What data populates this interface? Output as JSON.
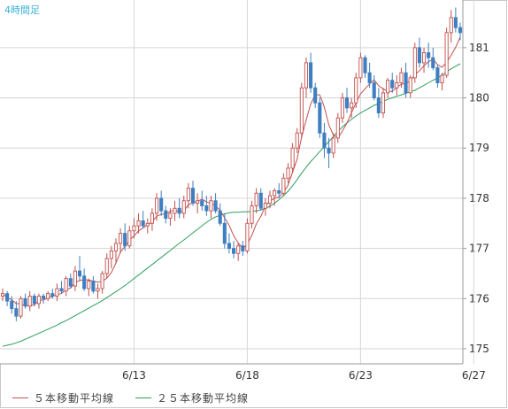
{
  "chart_title": "4時間足",
  "legend": [
    {
      "label": "５本移動平均線",
      "color": "#c0504d"
    },
    {
      "label": "２５本移動平均線",
      "color": "#2e9e5f"
    }
  ],
  "chart_data": {
    "type": "candlestick",
    "title": "4時間足",
    "ylim": [
      174.7,
      181.95
    ],
    "yticks": [
      175,
      176,
      177,
      178,
      179,
      180,
      181
    ],
    "xticks": [
      {
        "label": "6/13",
        "index": 29
      },
      {
        "label": "6/18",
        "index": 54
      },
      {
        "label": "6/23",
        "index": 79
      },
      {
        "label": "6/27",
        "index": 104
      }
    ],
    "grid": true,
    "legend_position": "bottom",
    "colors": {
      "up": "#c0504d",
      "down": "#3f7fc1",
      "ma5": "#c0504d",
      "ma25": "#2e9e5f"
    },
    "ohlc": [
      [
        176.05,
        176.2,
        175.95,
        176.1
      ],
      [
        176.1,
        176.15,
        175.85,
        175.95
      ],
      [
        175.95,
        176.05,
        175.7,
        175.8
      ],
      [
        175.8,
        175.95,
        175.55,
        175.65
      ],
      [
        175.65,
        176.05,
        175.6,
        176.0
      ],
      [
        176.0,
        176.1,
        175.8,
        175.85
      ],
      [
        175.85,
        176.15,
        175.75,
        176.05
      ],
      [
        176.05,
        176.1,
        175.85,
        175.9
      ],
      [
        175.9,
        176.1,
        175.8,
        176.05
      ],
      [
        176.05,
        176.1,
        175.9,
        176.0
      ],
      [
        176.0,
        176.15,
        175.95,
        176.1
      ],
      [
        176.1,
        176.2,
        176.0,
        176.05
      ],
      [
        176.05,
        176.3,
        175.95,
        176.2
      ],
      [
        176.2,
        176.35,
        176.1,
        176.15
      ],
      [
        176.15,
        176.45,
        176.05,
        176.4
      ],
      [
        176.4,
        176.5,
        176.2,
        176.25
      ],
      [
        176.25,
        176.65,
        176.15,
        176.55
      ],
      [
        176.55,
        176.85,
        176.35,
        176.45
      ],
      [
        176.45,
        176.6,
        176.15,
        176.2
      ],
      [
        176.2,
        176.4,
        176.05,
        176.35
      ],
      [
        176.35,
        176.45,
        176.1,
        176.15
      ],
      [
        176.15,
        176.3,
        176.0,
        176.2
      ],
      [
        176.2,
        176.55,
        176.1,
        176.5
      ],
      [
        176.5,
        176.9,
        176.4,
        176.8
      ],
      [
        176.8,
        177.05,
        176.6,
        176.95
      ],
      [
        176.95,
        177.2,
        176.7,
        177.1
      ],
      [
        177.1,
        177.4,
        176.9,
        177.3
      ],
      [
        177.3,
        177.5,
        176.95,
        177.05
      ],
      [
        177.05,
        177.45,
        177.0,
        177.35
      ],
      [
        177.35,
        177.6,
        177.2,
        177.45
      ],
      [
        177.45,
        177.7,
        177.3,
        177.55
      ],
      [
        177.55,
        177.75,
        177.4,
        177.45
      ],
      [
        177.45,
        177.6,
        177.3,
        177.5
      ],
      [
        177.5,
        177.8,
        177.35,
        177.7
      ],
      [
        177.7,
        178.1,
        177.55,
        178.0
      ],
      [
        178.0,
        178.15,
        177.65,
        177.75
      ],
      [
        177.75,
        177.85,
        177.5,
        177.6
      ],
      [
        177.6,
        177.8,
        177.45,
        177.7
      ],
      [
        177.7,
        177.95,
        177.55,
        177.8
      ],
      [
        177.8,
        178.0,
        177.6,
        177.7
      ],
      [
        177.7,
        178.05,
        177.6,
        177.95
      ],
      [
        177.95,
        178.3,
        177.8,
        178.2
      ],
      [
        178.2,
        178.35,
        177.85,
        177.9
      ],
      [
        177.9,
        178.1,
        177.7,
        177.95
      ],
      [
        177.95,
        178.15,
        177.75,
        177.85
      ],
      [
        177.85,
        178.05,
        177.65,
        177.75
      ],
      [
        177.75,
        178.05,
        177.6,
        177.95
      ],
      [
        177.95,
        178.1,
        177.7,
        177.75
      ],
      [
        177.75,
        177.9,
        177.45,
        177.5
      ],
      [
        177.5,
        177.7,
        177.0,
        177.1
      ],
      [
        177.1,
        177.3,
        176.9,
        177.0
      ],
      [
        177.0,
        177.15,
        176.8,
        176.9
      ],
      [
        176.9,
        177.1,
        176.75,
        177.05
      ],
      [
        177.05,
        177.15,
        176.85,
        176.95
      ],
      [
        176.95,
        177.6,
        176.9,
        177.5
      ],
      [
        177.5,
        177.95,
        177.4,
        177.85
      ],
      [
        177.85,
        178.2,
        177.7,
        178.1
      ],
      [
        178.1,
        178.2,
        177.75,
        177.8
      ],
      [
        177.8,
        178.0,
        177.65,
        177.9
      ],
      [
        177.9,
        178.15,
        177.8,
        178.05
      ],
      [
        178.05,
        178.2,
        177.85,
        178.15
      ],
      [
        178.15,
        178.3,
        178.0,
        178.1
      ],
      [
        178.1,
        178.5,
        178.05,
        178.4
      ],
      [
        178.4,
        178.7,
        178.3,
        178.6
      ],
      [
        178.6,
        179.1,
        178.5,
        179.0
      ],
      [
        179.0,
        179.4,
        178.9,
        179.3
      ],
      [
        179.3,
        180.3,
        179.2,
        180.2
      ],
      [
        180.2,
        180.8,
        180.0,
        180.7
      ],
      [
        180.7,
        180.9,
        180.1,
        180.2
      ],
      [
        180.2,
        180.3,
        179.8,
        179.9
      ],
      [
        179.9,
        180.0,
        179.2,
        179.3
      ],
      [
        179.3,
        179.5,
        178.8,
        179.0
      ],
      [
        179.0,
        179.2,
        178.6,
        178.9
      ],
      [
        178.9,
        179.3,
        178.8,
        179.2
      ],
      [
        179.2,
        179.7,
        179.1,
        179.6
      ],
      [
        179.6,
        180.1,
        179.5,
        180.0
      ],
      [
        180.0,
        180.2,
        179.7,
        179.8
      ],
      [
        179.8,
        180.0,
        179.6,
        179.9
      ],
      [
        179.9,
        180.5,
        179.8,
        180.4
      ],
      [
        180.4,
        180.9,
        180.3,
        180.8
      ],
      [
        180.8,
        180.85,
        180.4,
        180.5
      ],
      [
        180.5,
        180.7,
        180.2,
        180.3
      ],
      [
        180.3,
        180.45,
        179.95,
        180.0
      ],
      [
        180.0,
        180.2,
        179.6,
        179.7
      ],
      [
        179.7,
        180.2,
        179.6,
        180.1
      ],
      [
        180.1,
        180.4,
        180.0,
        180.35
      ],
      [
        180.35,
        180.5,
        180.1,
        180.2
      ],
      [
        180.2,
        180.45,
        180.05,
        180.3
      ],
      [
        180.3,
        180.6,
        180.2,
        180.5
      ],
      [
        180.5,
        180.7,
        180.0,
        180.1
      ],
      [
        180.1,
        180.45,
        180.0,
        180.4
      ],
      [
        180.4,
        181.1,
        180.3,
        181.0
      ],
      [
        181.0,
        181.2,
        180.6,
        180.7
      ],
      [
        180.7,
        181.0,
        180.5,
        180.9
      ],
      [
        180.9,
        181.1,
        180.6,
        180.8
      ],
      [
        180.8,
        181.0,
        180.55,
        180.6
      ],
      [
        180.6,
        180.65,
        180.2,
        180.3
      ],
      [
        180.3,
        180.5,
        180.15,
        180.45
      ],
      [
        180.45,
        181.4,
        180.4,
        181.3
      ],
      [
        181.3,
        181.75,
        181.1,
        181.6
      ],
      [
        181.6,
        181.8,
        181.3,
        181.4
      ],
      [
        181.4,
        181.5,
        181.15,
        181.3
      ]
    ],
    "ma5": [
      176.1,
      176.02,
      175.98,
      175.9,
      175.9,
      175.85,
      175.87,
      175.87,
      175.97,
      175.97,
      176.02,
      176.04,
      176.08,
      176.1,
      176.18,
      176.21,
      176.32,
      176.36,
      176.38,
      176.37,
      176.35,
      176.33,
      176.34,
      176.41,
      176.52,
      176.71,
      176.93,
      177.04,
      177.16,
      177.25,
      177.35,
      177.41,
      177.47,
      177.53,
      177.64,
      177.68,
      177.69,
      177.74,
      177.77,
      177.72,
      177.75,
      177.87,
      177.91,
      177.94,
      177.98,
      177.93,
      177.89,
      177.85,
      177.76,
      177.61,
      177.46,
      177.25,
      177.11,
      177.0,
      177.08,
      177.26,
      177.49,
      177.64,
      177.85,
      177.94,
      178.0,
      178.02,
      178.12,
      178.26,
      178.52,
      178.78,
      179.22,
      179.56,
      179.88,
      180.06,
      180.06,
      179.82,
      179.46,
      179.26,
      179.2,
      179.34,
      179.5,
      179.7,
      179.9,
      180.08,
      180.18,
      180.28,
      180.36,
      180.24,
      180.18,
      180.13,
      180.13,
      180.21,
      180.27,
      180.29,
      180.34,
      180.46,
      180.54,
      180.64,
      180.72,
      180.77,
      180.66,
      180.61,
      180.71,
      180.85,
      181.01,
      181.21
    ],
    "ma25": [
      175.05,
      175.07,
      175.09,
      175.12,
      175.15,
      175.19,
      175.23,
      175.27,
      175.31,
      175.35,
      175.39,
      175.43,
      175.47,
      175.52,
      175.56,
      175.61,
      175.66,
      175.71,
      175.76,
      175.81,
      175.86,
      175.91,
      175.96,
      176.02,
      176.08,
      176.14,
      176.2,
      176.26,
      176.33,
      176.4,
      176.47,
      176.54,
      176.61,
      176.68,
      176.75,
      176.82,
      176.89,
      176.96,
      177.03,
      177.1,
      177.17,
      177.24,
      177.31,
      177.38,
      177.45,
      177.52,
      177.58,
      177.63,
      177.66,
      177.69,
      177.71,
      177.72,
      177.72,
      177.73,
      177.73,
      177.74,
      177.75,
      177.77,
      177.8,
      177.84,
      177.9,
      177.97,
      178.05,
      178.14,
      178.25,
      178.37,
      178.5,
      178.62,
      178.73,
      178.83,
      178.93,
      179.03,
      179.13,
      179.23,
      179.33,
      179.42,
      179.5,
      179.57,
      179.64,
      179.7,
      179.75,
      179.8,
      179.85,
      179.89,
      179.93,
      179.97,
      180.0,
      180.03,
      180.06,
      180.09,
      180.12,
      180.15,
      180.2,
      180.25,
      180.3,
      180.35,
      180.4,
      180.45,
      180.52,
      180.58,
      180.63,
      180.68
    ]
  }
}
